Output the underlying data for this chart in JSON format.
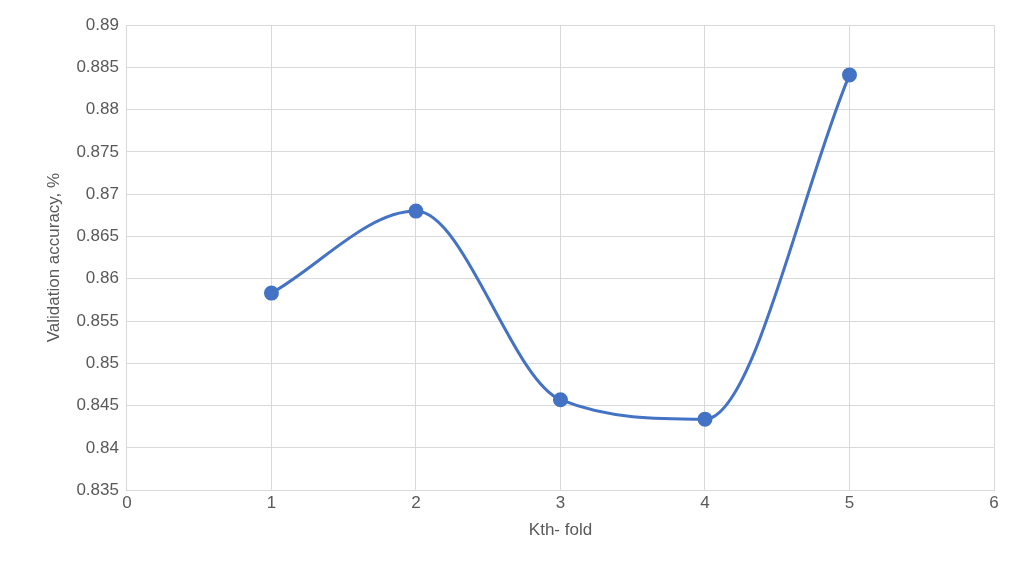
{
  "chart_data": {
    "type": "line",
    "xlabel": "Kth- fold",
    "ylabel": "Validation accuracy, %",
    "x": [
      1,
      2,
      3,
      4,
      5
    ],
    "series": [
      {
        "color": "#4472c4",
        "values": [
          0.8583,
          0.868,
          0.8457,
          0.8434,
          0.8841
        ]
      }
    ],
    "xlim": [
      0,
      6
    ],
    "xticks": [
      0,
      1,
      2,
      3,
      4,
      5,
      6
    ],
    "ylim": [
      0.835,
      0.89
    ],
    "yticks": [
      0.835,
      0.84,
      0.845,
      0.85,
      0.855,
      0.86,
      0.865,
      0.87,
      0.875,
      0.88,
      0.885,
      0.89
    ],
    "grid": true,
    "legend": false,
    "marker": "circle",
    "line_style": "solid"
  }
}
